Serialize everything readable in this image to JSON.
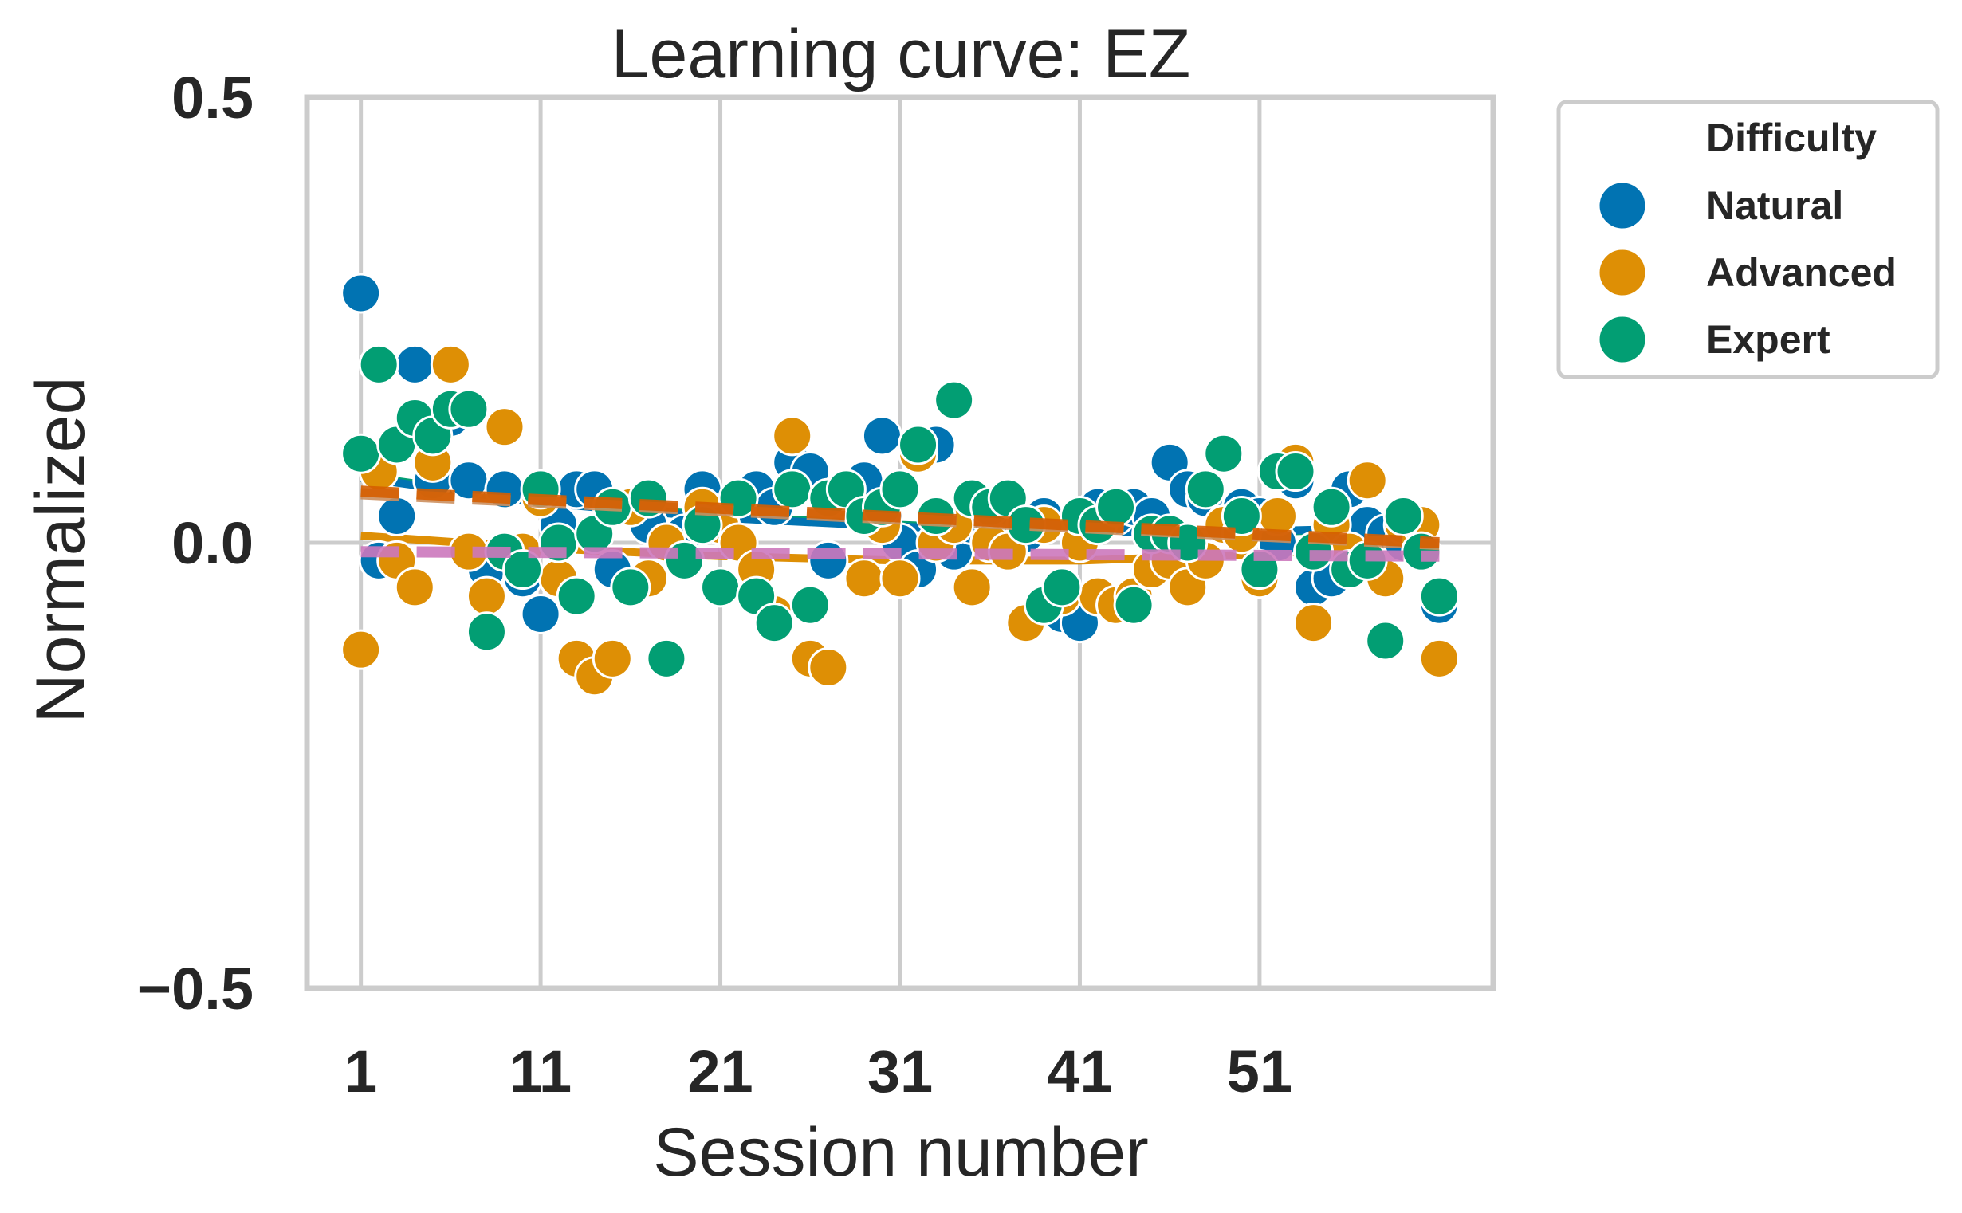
{
  "chart_data": {
    "type": "scatter",
    "title": "Learning curve: EZ",
    "xlabel": "Session number",
    "ylabel": "Normalized",
    "xlim": [
      -2,
      64
    ],
    "ylim": [
      -0.5,
      0.5
    ],
    "xticks": [
      1,
      11,
      21,
      31,
      41,
      51
    ],
    "xtick_labels": [
      "1",
      "11",
      "21",
      "31",
      "41",
      "51"
    ],
    "yticks": [
      -0.5,
      0.0,
      0.5
    ],
    "ytick_labels": [
      "−0.5",
      "0.0",
      "0.5"
    ],
    "grid": true,
    "legend": {
      "title": "Difficulty",
      "placement": "outside-top-right",
      "entries": [
        "Natural",
        "Advanced",
        "Expert"
      ]
    },
    "colors": {
      "Natural": "#0173b2",
      "Advanced": "#de8f05",
      "Expert": "#029e73",
      "trend_dashed_1": "#cc8f5e",
      "trend_dashed_2": "#cc78bc",
      "trend_dashed_3": "#d55e00"
    },
    "series": [
      {
        "name": "Natural",
        "x": [
          1,
          2,
          3,
          4,
          5,
          6,
          7,
          8,
          9,
          10,
          11,
          12,
          13,
          14,
          15,
          16,
          17,
          18,
          19,
          20,
          21,
          22,
          23,
          24,
          25,
          26,
          27,
          28,
          29,
          30,
          31,
          32,
          33,
          34,
          35,
          36,
          37,
          38,
          39,
          40,
          41,
          42,
          43,
          44,
          45,
          46,
          47,
          48,
          49,
          50,
          51,
          52,
          53,
          54,
          55,
          56,
          57,
          58,
          59,
          60,
          61
        ],
        "y": [
          0.28,
          -0.02,
          0.03,
          0.2,
          0.07,
          0.14,
          0.07,
          -0.03,
          0.06,
          -0.04,
          -0.08,
          0.02,
          0.06,
          0.06,
          -0.03,
          0.04,
          0.02,
          0.0,
          0.01,
          0.06,
          0.02,
          0.05,
          0.06,
          0.04,
          0.09,
          0.08,
          -0.02,
          0.05,
          0.07,
          0.12,
          0.0,
          -0.03,
          0.11,
          -0.01,
          0.02,
          0.03,
          0.04,
          0.01,
          0.03,
          -0.08,
          -0.09,
          0.04,
          0.03,
          0.04,
          0.03,
          0.09,
          0.06,
          0.05,
          0.02,
          0.04,
          0.03,
          0.0,
          0.07,
          -0.05,
          -0.04,
          0.06,
          0.02,
          0.01,
          0.0,
          -0.01,
          -0.07
        ]
      },
      {
        "name": "Advanced",
        "x": [
          1,
          2,
          3,
          4,
          5,
          6,
          7,
          8,
          9,
          10,
          11,
          12,
          13,
          14,
          15,
          16,
          17,
          18,
          19,
          20,
          21,
          22,
          23,
          24,
          25,
          26,
          27,
          28,
          29,
          30,
          31,
          32,
          33,
          34,
          35,
          36,
          37,
          38,
          39,
          40,
          41,
          42,
          43,
          44,
          45,
          46,
          47,
          48,
          49,
          50,
          51,
          52,
          53,
          54,
          55,
          56,
          57,
          58,
          59,
          60,
          61
        ],
        "y": [
          -0.12,
          0.08,
          -0.02,
          -0.05,
          0.09,
          0.2,
          -0.01,
          -0.06,
          0.13,
          -0.01,
          0.05,
          -0.04,
          -0.13,
          -0.15,
          -0.13,
          0.04,
          -0.04,
          0.0,
          -0.02,
          0.04,
          0.02,
          0.0,
          -0.03,
          -0.08,
          0.12,
          -0.13,
          -0.14,
          0.05,
          -0.04,
          0.02,
          -0.04,
          0.1,
          0.0,
          0.02,
          -0.05,
          0.0,
          -0.01,
          -0.09,
          0.02,
          -0.06,
          0.0,
          -0.06,
          -0.07,
          -0.06,
          -0.03,
          -0.02,
          -0.05,
          -0.02,
          0.02,
          0.01,
          -0.04,
          0.03,
          0.09,
          -0.09,
          0.02,
          -0.01,
          0.07,
          -0.04,
          0.02,
          0.02,
          -0.13
        ]
      },
      {
        "name": "Expert",
        "x": [
          1,
          2,
          3,
          4,
          5,
          6,
          7,
          8,
          9,
          10,
          11,
          12,
          13,
          14,
          15,
          16,
          17,
          18,
          19,
          20,
          21,
          22,
          23,
          24,
          25,
          26,
          27,
          28,
          29,
          30,
          31,
          32,
          33,
          34,
          35,
          36,
          37,
          38,
          39,
          40,
          41,
          42,
          43,
          44,
          45,
          46,
          47,
          48,
          49,
          50,
          51,
          52,
          53,
          54,
          55,
          56,
          57,
          58,
          59,
          60,
          61
        ],
        "y": [
          0.1,
          0.2,
          0.11,
          0.14,
          0.12,
          0.15,
          0.15,
          -0.1,
          -0.01,
          -0.03,
          0.06,
          0.0,
          -0.06,
          0.01,
          0.04,
          -0.05,
          0.05,
          -0.13,
          -0.02,
          0.02,
          -0.05,
          0.05,
          -0.06,
          -0.09,
          0.06,
          -0.07,
          0.05,
          0.06,
          0.03,
          0.04,
          0.06,
          0.11,
          0.03,
          0.16,
          0.05,
          0.04,
          0.05,
          0.02,
          -0.07,
          -0.05,
          0.03,
          0.02,
          0.04,
          -0.07,
          0.01,
          0.01,
          0.0,
          0.06,
          0.1,
          0.03,
          -0.03,
          0.08,
          0.08,
          -0.01,
          0.04,
          -0.03,
          -0.02,
          -0.11,
          0.03,
          -0.01,
          -0.06
        ]
      }
    ],
    "trend_lines": [
      {
        "style": "solid",
        "color": "#029e73",
        "x": [
          1,
          11,
          21,
          31,
          41,
          51,
          61
        ],
        "y": [
          0.075,
          0.047,
          0.03,
          0.02,
          0.013,
          0.012,
          0.017
        ]
      },
      {
        "style": "solid",
        "color": "#0173b2",
        "x": [
          1,
          11,
          21,
          31,
          41,
          51,
          61
        ],
        "y": [
          0.073,
          0.045,
          0.028,
          0.018,
          0.012,
          0.013,
          0.018
        ]
      },
      {
        "style": "solid",
        "color": "#de8f05",
        "x": [
          1,
          11,
          21,
          31,
          41,
          51,
          61
        ],
        "y": [
          0.008,
          -0.006,
          -0.015,
          -0.02,
          -0.02,
          -0.013,
          0.0
        ]
      },
      {
        "style": "dashed",
        "color": "#cc8f5e",
        "x": [
          1,
          61
        ],
        "y": [
          0.055,
          -0.002
        ]
      },
      {
        "style": "dashed",
        "color": "#d55e00",
        "x": [
          1,
          61
        ],
        "y": [
          0.058,
          0.0
        ]
      },
      {
        "style": "dashed",
        "color": "#cc78bc",
        "x": [
          1,
          61
        ],
        "y": [
          -0.01,
          -0.015
        ]
      }
    ]
  }
}
